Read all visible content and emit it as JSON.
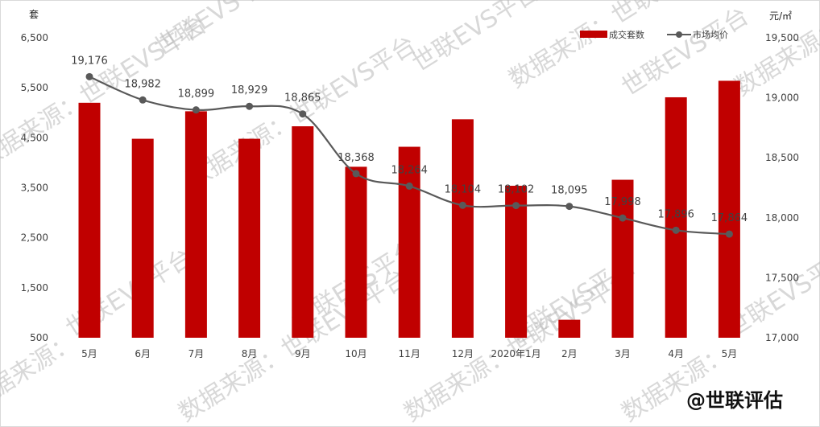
{
  "chart_data": {
    "type": "bar",
    "categories": [
      "5月",
      "6月",
      "7月",
      "8月",
      "9月",
      "10月",
      "11月",
      "12月",
      "2020年1月",
      "2月",
      "3月",
      "4月",
      "5月"
    ],
    "series": [
      {
        "name": "成交套数",
        "kind": "bar",
        "axis": "left",
        "color": "#c00000",
        "values": [
          5200,
          4480,
          5030,
          4480,
          4730,
          3920,
          4320,
          4870,
          3540,
          860,
          3660,
          5310,
          5640
        ]
      },
      {
        "name": "市场均价",
        "kind": "line",
        "axis": "right",
        "color": "#595959",
        "values": [
          19176,
          18982,
          18899,
          18929,
          18865,
          18368,
          18264,
          18104,
          18102,
          18095,
          17998,
          17896,
          17864
        ],
        "labels": [
          "19,176",
          "18,982",
          "18,899",
          "18,929",
          "18,865",
          "18,368",
          "18,264",
          "18,104",
          "18,102",
          "18,095",
          "17,998",
          "17,896",
          "17,864"
        ]
      }
    ],
    "y_left": {
      "unit": "套",
      "ylim": [
        500,
        6500
      ],
      "ticks": [
        "6,500",
        "5,500",
        "4,500",
        "3,500",
        "2,500",
        "1,500",
        "500"
      ]
    },
    "y_right": {
      "unit": "元/㎡",
      "ylim": [
        17000,
        19500
      ],
      "ticks": [
        "19,500",
        "19,000",
        "18,500",
        "18,000",
        "17,500",
        "17,000"
      ]
    },
    "legend": {
      "position": "top-right"
    },
    "grid": false
  },
  "watermark": {
    "text_a": "数据来源：世联EVS平台",
    "text_b": "世联EVS平台",
    "text_c": "数据来源："
  },
  "brand": "@世联评估"
}
